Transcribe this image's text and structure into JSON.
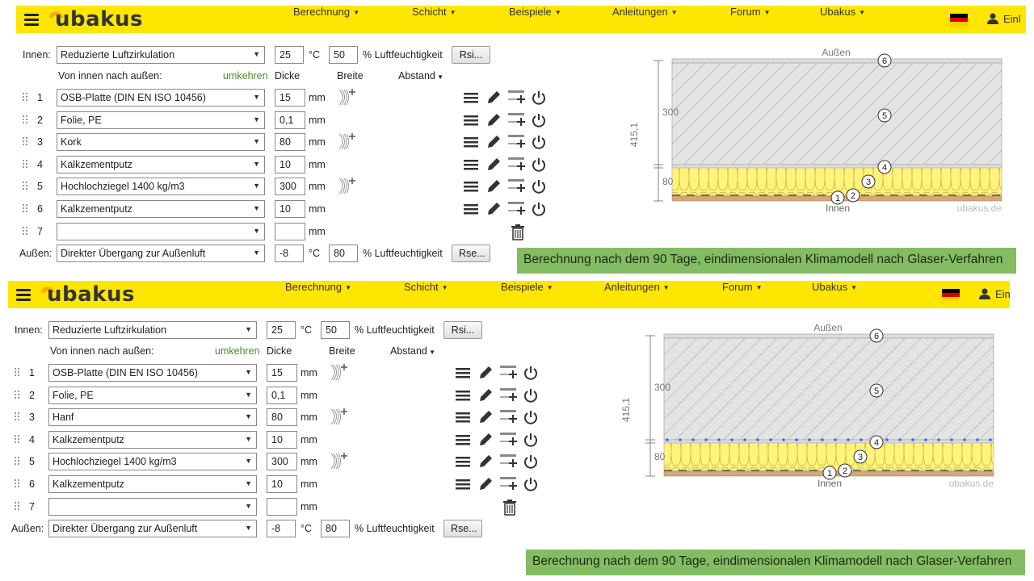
{
  "nav": {
    "brand": "ubakus",
    "items": [
      "Berechnung",
      "Schicht",
      "Beispiele",
      "Anleitungen",
      "Forum",
      "Ubakus"
    ],
    "login": "Einl"
  },
  "form_labels": {
    "innen": "Innen:",
    "aussen": "Außen:",
    "direction": "Von innen nach außen:",
    "reverse": "umkehren",
    "thickness": "Dicke",
    "width": "Breite",
    "spacing": "Abstand",
    "unit_c": "°C",
    "unit_mm": "mm",
    "humidity": "% Luftfeuchtigkeit",
    "rsi": "Rsi...",
    "rse": "Rse..."
  },
  "colors": {
    "topbar": "#ffe600",
    "banner": "#84bc63",
    "reverse_link": "#4a8a2a"
  },
  "panels": [
    {
      "inner": {
        "condition": "Reduzierte Luftzirkulation",
        "temp": "25",
        "humidity": "50"
      },
      "outer": {
        "condition": "Direkter Übergang zur Außenluft",
        "temp": "-8",
        "humidity": "80"
      },
      "layers": [
        {
          "num": "1",
          "material": "OSB-Platte (DIN EN ISO 10456)",
          "thickness": "15"
        },
        {
          "num": "2",
          "material": "Folie, PE",
          "thickness": "0,1"
        },
        {
          "num": "3",
          "material": "Kork",
          "thickness": "80"
        },
        {
          "num": "4",
          "material": "Kalkzementputz",
          "thickness": "10"
        },
        {
          "num": "5",
          "material": "Hochlochziegel 1400 kg/m3",
          "thickness": "300"
        },
        {
          "num": "6",
          "material": "Kalkzementputz",
          "thickness": "10"
        },
        {
          "num": "7",
          "material": "",
          "thickness": ""
        }
      ],
      "diagram": {
        "outside": "Außen",
        "inside": "Innen",
        "total": "415,1",
        "dim_upper": "300",
        "dim_lower": "80",
        "watermark": "ubakus.de"
      },
      "banner": "Berechnung nach dem  90 Tage, eindimensionalen Klimamodell nach Glaser-Verfahren"
    },
    {
      "inner": {
        "condition": "Reduzierte Luftzirkulation",
        "temp": "25",
        "humidity": "50"
      },
      "outer": {
        "condition": "Direkter Übergang zur Außenluft",
        "temp": "-8",
        "humidity": "80"
      },
      "layers": [
        {
          "num": "1",
          "material": "OSB-Platte (DIN EN ISO 10456)",
          "thickness": "15"
        },
        {
          "num": "2",
          "material": "Folie, PE",
          "thickness": "0,1"
        },
        {
          "num": "3",
          "material": "Hanf",
          "thickness": "80"
        },
        {
          "num": "4",
          "material": "Kalkzementputz",
          "thickness": "10"
        },
        {
          "num": "5",
          "material": "Hochlochziegel 1400 kg/m3",
          "thickness": "300"
        },
        {
          "num": "6",
          "material": "Kalkzementputz",
          "thickness": "10"
        },
        {
          "num": "7",
          "material": "",
          "thickness": ""
        }
      ],
      "diagram": {
        "outside": "Außen",
        "inside": "Innen",
        "total": "415,1",
        "dim_upper": "300",
        "dim_lower": "80",
        "watermark": "ubakus.de"
      },
      "banner": "Berechnung nach dem  90 Tage, eindimensionalen Klimamodell nach Glaser-Verfahren"
    }
  ]
}
